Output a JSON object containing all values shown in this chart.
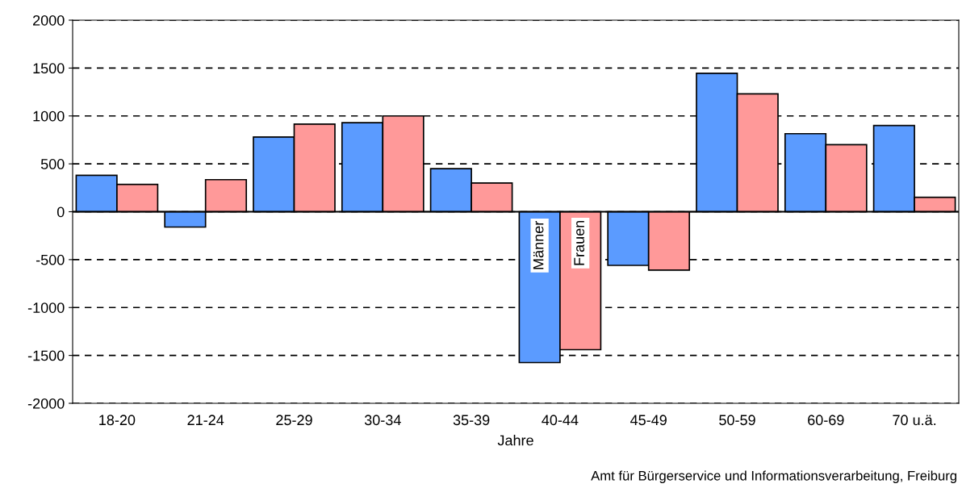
{
  "chart_data": {
    "type": "bar",
    "xlabel": "Jahre",
    "categories": [
      "18-20",
      "21-24",
      "25-29",
      "30-34",
      "35-39",
      "40-44",
      "45-49",
      "50-59",
      "60-69",
      "70 u.ä."
    ],
    "series": [
      {
        "name": "Männer",
        "color": "#5b9bff",
        "values": [
          380,
          -160,
          780,
          930,
          450,
          -1575,
          -560,
          1445,
          815,
          900
        ]
      },
      {
        "name": "Frauen",
        "color": "#ff9999",
        "values": [
          285,
          335,
          915,
          1000,
          300,
          -1440,
          -610,
          1230,
          700,
          150
        ]
      }
    ],
    "ylim": [
      -2000,
      2000
    ],
    "yticks": [
      -2000,
      -1500,
      -1000,
      -500,
      0,
      500,
      1000,
      1500,
      2000
    ],
    "grid": "y",
    "legend": false,
    "annotations": [
      "Amt für Bürgerservice und Informationsverarbeitung, Freiburg"
    ]
  }
}
